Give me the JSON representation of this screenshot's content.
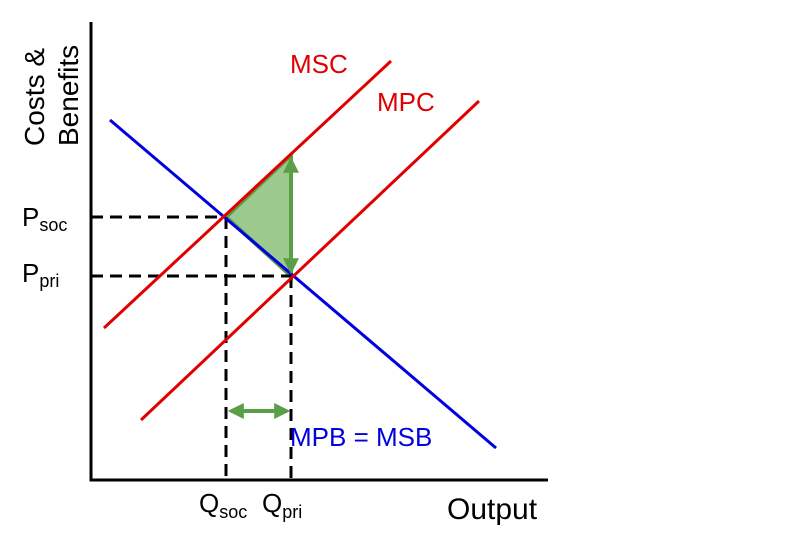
{
  "axes": {
    "y_label": [
      "Costs &",
      "Benefits"
    ],
    "x_label": "Output"
  },
  "curves": [
    {
      "label": "MSC"
    },
    {
      "label": "MPC"
    },
    {
      "label": "MPB = MSB"
    }
  ],
  "prices": [
    {
      "symbol": "P",
      "subscript": "soc"
    },
    {
      "symbol": "P",
      "subscript": "pri"
    }
  ],
  "quantities": [
    {
      "symbol": "Q",
      "subscript": "soc"
    },
    {
      "symbol": "Q",
      "subscript": "pri"
    }
  ]
}
